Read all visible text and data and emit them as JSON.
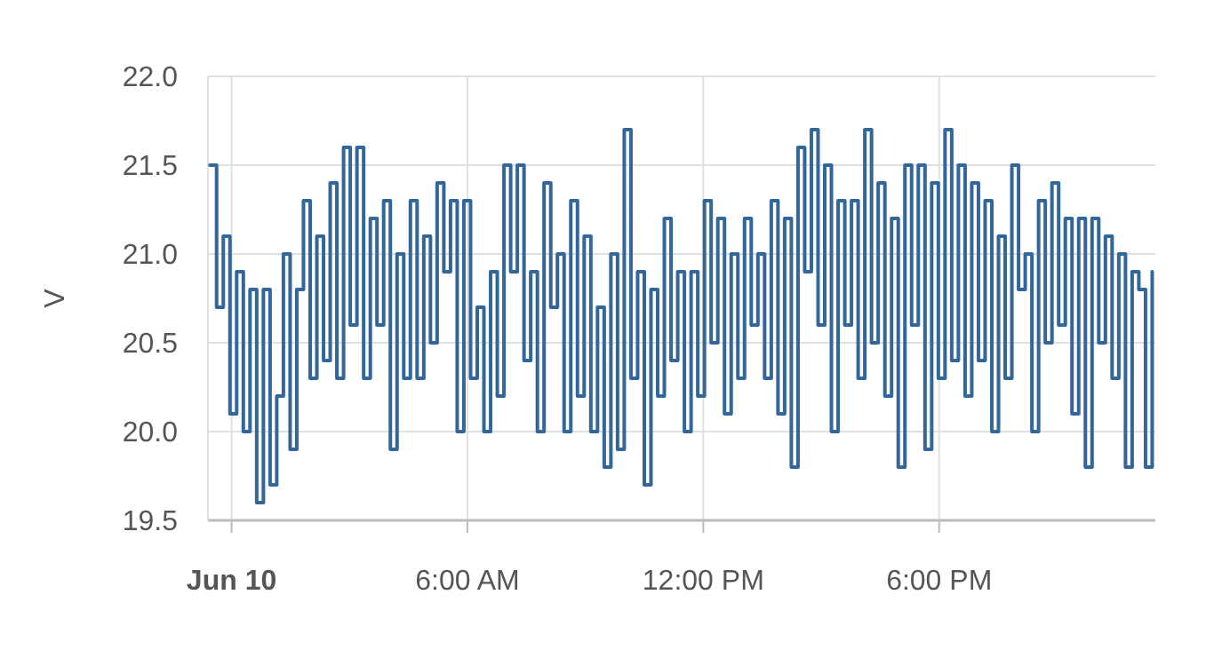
{
  "chart_data": {
    "type": "step",
    "ylabel": "V",
    "color": "#336699",
    "grid": true,
    "xlim": [
      -0.6,
      23.5
    ],
    "ylim": [
      19.5,
      22.0
    ],
    "xticks": [
      {
        "value": 0,
        "label": "Jun 10"
      },
      {
        "value": 6,
        "label": "6:00 AM"
      },
      {
        "value": 12,
        "label": "12:00 PM"
      },
      {
        "value": 18,
        "label": "6:00 PM"
      }
    ],
    "yticks": [
      {
        "value": 19.5,
        "label": "19.5"
      },
      {
        "value": 20,
        "label": "20.0"
      },
      {
        "value": 20.5,
        "label": "20.5"
      },
      {
        "value": 21,
        "label": "21.0"
      },
      {
        "value": 21.5,
        "label": "21.5"
      },
      {
        "value": 22,
        "label": "22.0"
      }
    ],
    "x": [
      -0.55,
      -0.38,
      -0.21,
      -0.04,
      0.13,
      0.3,
      0.47,
      0.64,
      0.81,
      0.98,
      1.15,
      1.32,
      1.49,
      1.66,
      1.83,
      2,
      2.17,
      2.34,
      2.51,
      2.68,
      2.85,
      3.02,
      3.19,
      3.36,
      3.53,
      3.7,
      3.87,
      4.04,
      4.21,
      4.38,
      4.55,
      4.72,
      4.89,
      5.06,
      5.23,
      5.4,
      5.57,
      5.74,
      5.91,
      6.08,
      6.25,
      6.42,
      6.59,
      6.76,
      6.93,
      7.1,
      7.27,
      7.44,
      7.61,
      7.78,
      7.95,
      8.12,
      8.29,
      8.46,
      8.63,
      8.8,
      8.97,
      9.14,
      9.31,
      9.48,
      9.65,
      9.82,
      9.99,
      10.16,
      10.33,
      10.5,
      10.67,
      10.84,
      11.01,
      11.18,
      11.35,
      11.52,
      11.69,
      11.86,
      12.03,
      12.2,
      12.37,
      12.54,
      12.71,
      12.88,
      13.05,
      13.22,
      13.39,
      13.56,
      13.73,
      13.9,
      14.07,
      14.24,
      14.41,
      14.58,
      14.75,
      14.92,
      15.09,
      15.26,
      15.43,
      15.6,
      15.77,
      15.94,
      16.11,
      16.28,
      16.45,
      16.62,
      16.79,
      16.96,
      17.13,
      17.3,
      17.47,
      17.64,
      17.81,
      17.98,
      18.15,
      18.32,
      18.49,
      18.66,
      18.83,
      19,
      19.17,
      19.34,
      19.51,
      19.68,
      19.85,
      20.02,
      20.19,
      20.36,
      20.53,
      20.7,
      20.87,
      21.04,
      21.21,
      21.38,
      21.55,
      21.72,
      21.89,
      22.06,
      22.23,
      22.4,
      22.57,
      22.74,
      22.91,
      23.08,
      23.25,
      23.42
    ],
    "values": [
      21.5,
      20.7,
      21.1,
      20.1,
      20.9,
      20.0,
      20.8,
      19.6,
      20.8,
      19.7,
      20.2,
      21.0,
      19.9,
      20.8,
      21.3,
      20.3,
      21.1,
      20.4,
      21.4,
      20.3,
      21.6,
      20.6,
      21.6,
      20.3,
      21.2,
      20.6,
      21.3,
      19.9,
      21.0,
      20.3,
      21.3,
      20.3,
      21.1,
      20.5,
      21.4,
      20.9,
      21.3,
      20.0,
      21.3,
      20.3,
      20.7,
      20.0,
      20.9,
      20.2,
      21.5,
      20.9,
      21.5,
      20.4,
      20.9,
      20.0,
      21.4,
      20.7,
      21.0,
      20.0,
      21.3,
      20.2,
      21.1,
      20.0,
      20.7,
      19.8,
      21.0,
      19.9,
      21.7,
      20.3,
      20.9,
      19.7,
      20.8,
      20.2,
      21.2,
      20.4,
      20.9,
      20.0,
      20.9,
      20.2,
      21.3,
      20.5,
      21.2,
      20.1,
      21.0,
      20.3,
      21.2,
      20.6,
      21.0,
      20.3,
      21.3,
      20.1,
      21.2,
      19.8,
      21.6,
      20.9,
      21.7,
      20.6,
      21.5,
      20.0,
      21.3,
      20.6,
      21.3,
      20.3,
      21.7,
      20.5,
      21.4,
      20.2,
      21.2,
      19.8,
      21.5,
      20.6,
      21.5,
      19.9,
      21.4,
      20.3,
      21.7,
      20.4,
      21.5,
      20.2,
      21.4,
      20.4,
      21.3,
      20.0,
      21.1,
      20.3,
      21.5,
      20.8,
      21.0,
      20.0,
      21.3,
      20.5,
      21.4,
      20.6,
      21.2,
      20.1,
      21.2,
      19.8,
      21.2,
      20.5,
      21.1,
      20.3,
      21.0,
      19.8,
      20.9,
      20.8,
      19.8,
      20.9
    ]
  }
}
